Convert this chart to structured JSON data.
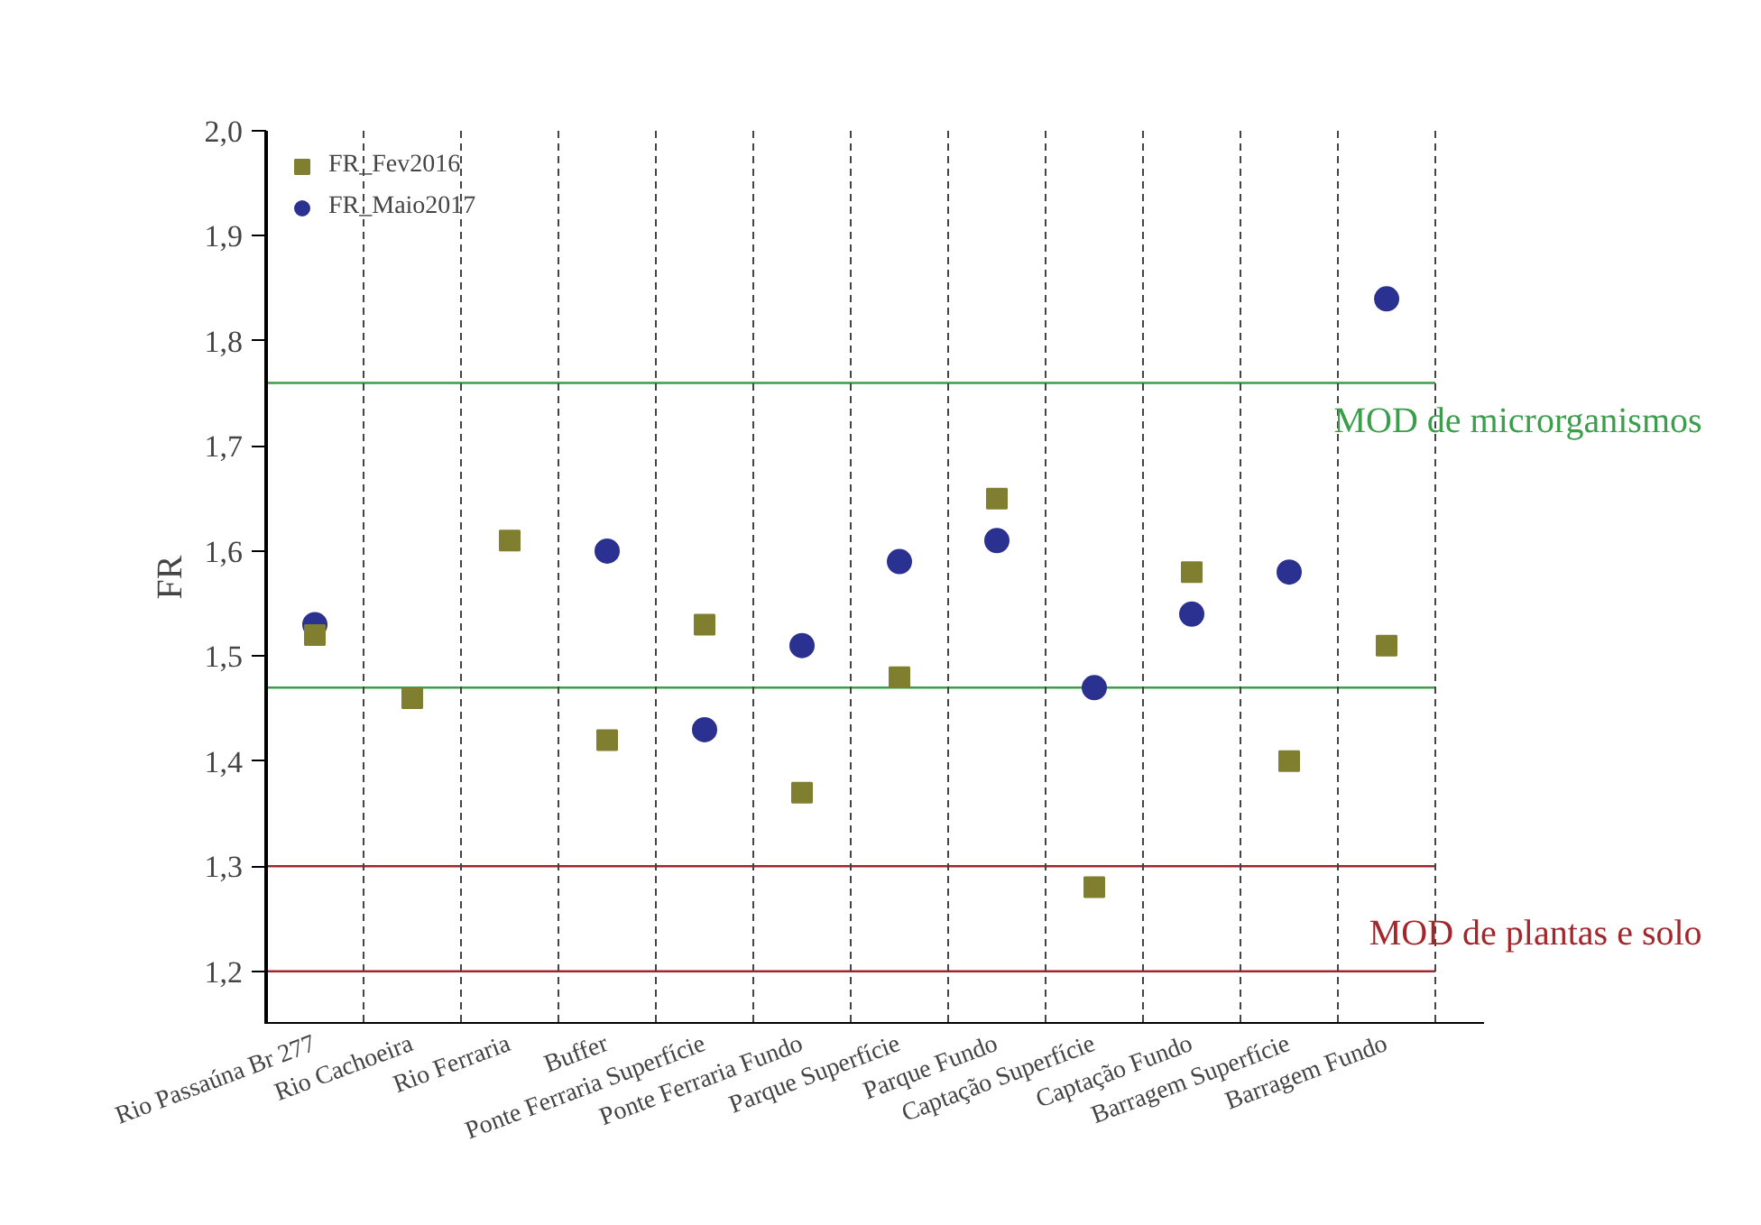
{
  "chart_data": {
    "type": "scatter",
    "ylabel": "FR",
    "categories": [
      "Rio Passaúna Br 277",
      "Rio Cachoeira",
      "Rio Ferraria",
      "Buffer",
      "Ponte Ferraria Superfície",
      "Ponte Ferraria Fundo",
      "Parque Superfície",
      "Parque Fundo",
      "Captação Superfície",
      "Captação Fundo",
      "Barragem Superfície",
      "Barragem Fundo"
    ],
    "series": [
      {
        "name": "FR_Fev2016",
        "color": "#7f7f2f",
        "marker": "square",
        "values": [
          1.52,
          1.46,
          1.61,
          1.42,
          1.53,
          1.37,
          1.48,
          1.65,
          1.28,
          1.58,
          1.4,
          1.51
        ]
      },
      {
        "name": "FR_Maio2017",
        "color": "#2b3190",
        "marker": "circle",
        "values": [
          1.53,
          null,
          null,
          1.6,
          1.43,
          1.51,
          1.59,
          1.61,
          1.47,
          1.54,
          1.58,
          1.84
        ]
      }
    ],
    "ylim": [
      1.15,
      2.0
    ],
    "yticks": [
      {
        "value": 1.2,
        "label": "1,2"
      },
      {
        "value": 1.3,
        "label": "1,3"
      },
      {
        "value": 1.4,
        "label": "1,4"
      },
      {
        "value": 1.5,
        "label": "1,5"
      },
      {
        "value": 1.6,
        "label": "1,6"
      },
      {
        "value": 1.7,
        "label": "1,7"
      },
      {
        "value": 1.8,
        "label": "1,8"
      },
      {
        "value": 1.9,
        "label": "1,9"
      },
      {
        "value": 2.0,
        "label": "2,0"
      }
    ],
    "ref_lines": [
      {
        "axis": "y",
        "value": 1.76,
        "label": "MOD de microrganismos",
        "color": "#3a9e4a"
      },
      {
        "axis": "y",
        "value": 1.47,
        "label": null,
        "color": "#3a9e4a"
      },
      {
        "axis": "y",
        "value": 1.3,
        "label": null,
        "color": "#a3262c"
      },
      {
        "axis": "y",
        "value": 1.2,
        "label": "MOD de plantas e solo",
        "color": "#a3262c"
      }
    ],
    "grid": "x",
    "legend": "top left"
  }
}
